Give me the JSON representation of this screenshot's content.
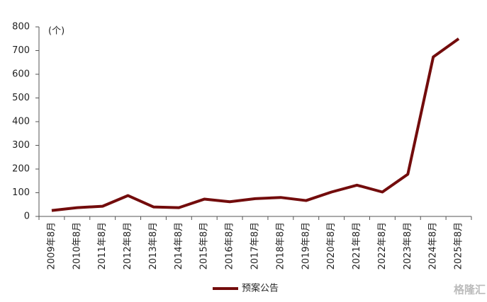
{
  "chart_data": {
    "type": "line",
    "unit": "(个)",
    "categories": [
      "2009年8月",
      "2010年8月",
      "2011年8月",
      "2012年8月",
      "2013年8月",
      "2014年8月",
      "2015年8月",
      "2016年8月",
      "2017年8月",
      "2018年8月",
      "2019年8月",
      "2020年8月",
      "2021年8月",
      "2022年8月",
      "2023年8月",
      "2024年8月",
      "2025年8月"
    ],
    "series": [
      {
        "name": "预案公告",
        "color": "#730c0c",
        "values": [
          25,
          37,
          43,
          88,
          40,
          37,
          73,
          62,
          75,
          80,
          67,
          103,
          132,
          103,
          178,
          673,
          750
        ]
      }
    ],
    "ylim": [
      0,
      800
    ],
    "yticks": [
      0,
      100,
      200,
      300,
      400,
      500,
      600,
      700,
      800
    ],
    "legend": "bottom",
    "watermark": "格隆汇"
  }
}
